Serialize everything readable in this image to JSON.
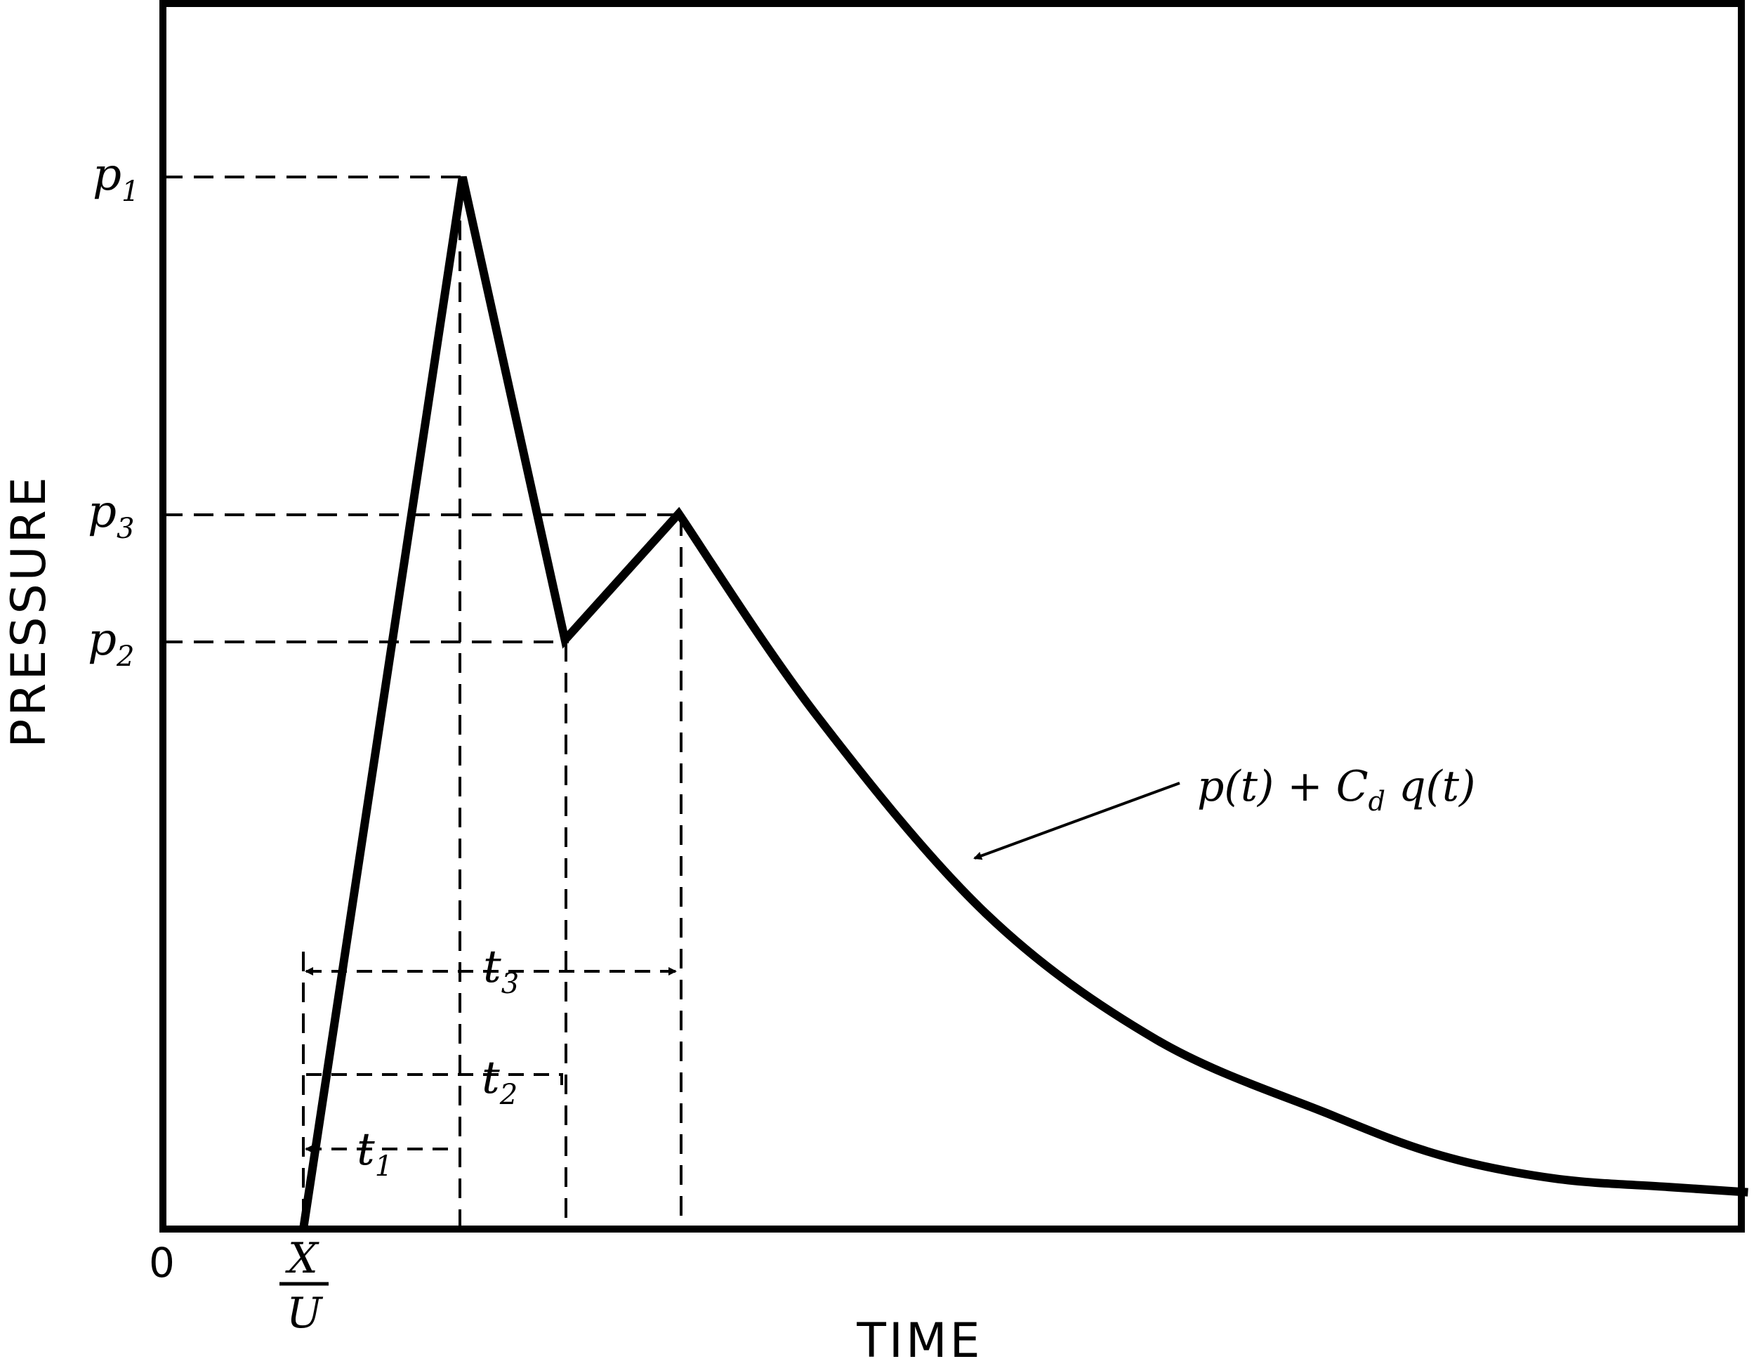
{
  "chart_data": {
    "type": "line",
    "title": "",
    "xlabel": "TIME",
    "ylabel": "PRESSURE",
    "origin_label": "0",
    "x_start_label": {
      "numerator": "X",
      "denominator": "U"
    },
    "y_levels": [
      {
        "label": "p",
        "sub": "1",
        "value": 1.0
      },
      {
        "label": "p",
        "sub": "3",
        "value": 0.68
      },
      {
        "label": "p",
        "sub": "2",
        "value": 0.56
      }
    ],
    "intervals": [
      {
        "label": "t",
        "sub": "1"
      },
      {
        "label": "t",
        "sub": "2"
      },
      {
        "label": "t",
        "sub": "3"
      }
    ],
    "series": [
      {
        "name": "p(t) + C_d q(t)",
        "label_main": "p(t) + C",
        "label_sub": "d",
        "label_tail": " q(t)",
        "points": [
          [
            0.0,
            0.0
          ],
          [
            0.14,
            1.0
          ],
          [
            0.23,
            0.56
          ],
          [
            0.33,
            0.68
          ],
          [
            0.45,
            0.49
          ],
          [
            0.6,
            0.3
          ],
          [
            0.75,
            0.18
          ],
          [
            0.9,
            0.11
          ],
          [
            1.0,
            0.07
          ],
          [
            1.1,
            0.048
          ],
          [
            1.2,
            0.04
          ],
          [
            1.27,
            0.035
          ]
        ]
      }
    ],
    "grid": false,
    "legend": "annotation with leader arrow"
  }
}
